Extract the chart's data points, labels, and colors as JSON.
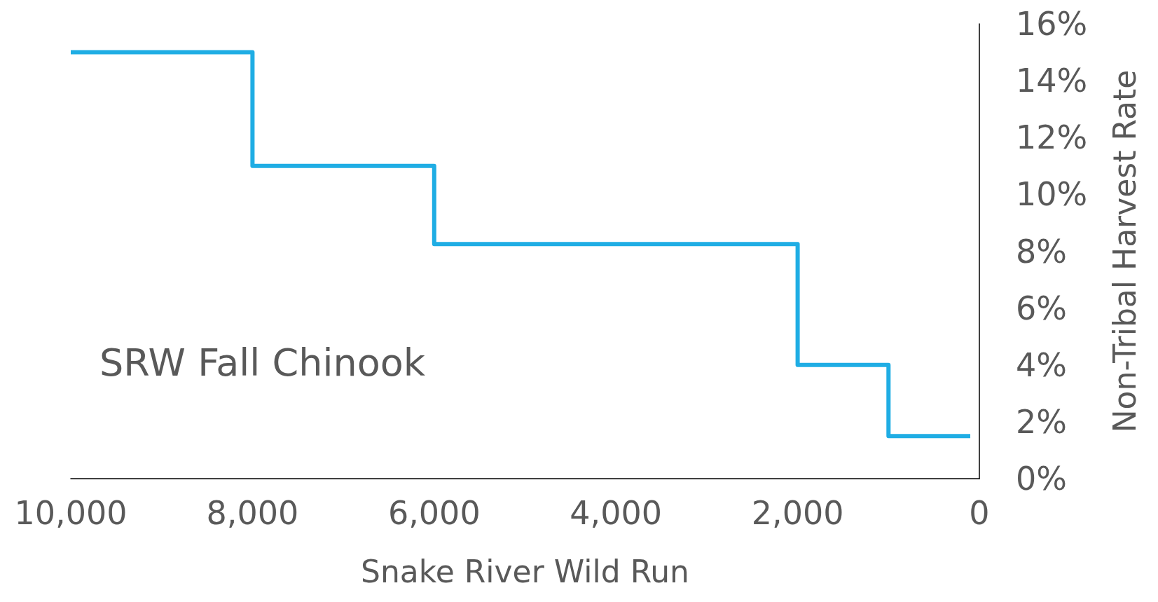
{
  "chart_data": {
    "type": "step",
    "xlabel": "Snake River Wild Run",
    "ylabel": "Non-Tribal Harvest Rate",
    "annotations": [
      "SRW Fall Chinook"
    ],
    "x": [
      10000,
      8000,
      6000,
      2000,
      1000,
      100
    ],
    "series": [
      {
        "color": "#1fade4",
        "values": [
          15,
          11,
          8.25,
          4,
          1.5,
          1.5
        ]
      }
    ],
    "xlim": [
      10000,
      0
    ],
    "xticks": [
      {
        "value": 10000,
        "label": "10,000"
      },
      {
        "value": 8000,
        "label": "8,000"
      },
      {
        "value": 6000,
        "label": "6,000"
      },
      {
        "value": 4000,
        "label": "4,000"
      },
      {
        "value": 2000,
        "label": "2,000"
      },
      0
    ],
    "ylim": [
      0,
      16
    ],
    "yticks": [
      {
        "value": 0,
        "label": "0%"
      },
      {
        "value": 2,
        "label": "2%"
      },
      {
        "value": 4,
        "label": "4%"
      },
      {
        "value": 6,
        "label": "6%"
      },
      {
        "value": 8,
        "label": "8%"
      },
      {
        "value": 10,
        "label": "10%"
      },
      {
        "value": 12,
        "label": "12%"
      },
      {
        "value": 14,
        "label": "14%"
      },
      {
        "value": 16,
        "label": "16%"
      }
    ],
    "grid": false,
    "marker": "none",
    "line_style": "solid"
  }
}
